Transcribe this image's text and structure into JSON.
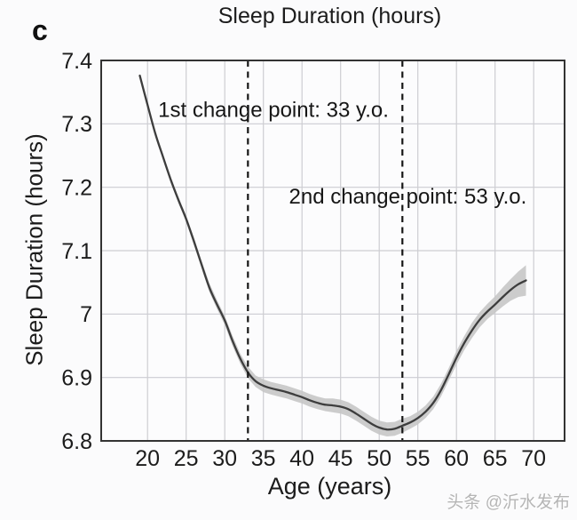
{
  "figure": {
    "panel_label": "c"
  },
  "watermark": {
    "text": "头条 @沂水发布",
    "color": "#b5b5b5"
  },
  "chart_data": {
    "type": "line",
    "title": "Sleep Duration (hours)",
    "xlabel": "Age (years)",
    "ylabel": "Sleep Duration (hours)",
    "xlim": [
      14,
      74
    ],
    "ylim": [
      6.8,
      7.4
    ],
    "x_ticks": [
      20,
      25,
      30,
      35,
      40,
      45,
      50,
      55,
      60,
      65,
      70
    ],
    "y_ticks": [
      6.8,
      6.9,
      7,
      7.1,
      7.2,
      7.3,
      7.4
    ],
    "y_tick_labels": [
      "6.8",
      "6.9",
      "7",
      "7.1",
      "7.2",
      "7.3",
      "7.4"
    ],
    "grid": true,
    "legend": "none",
    "series": [
      {
        "name": "mean sleep duration with confidence band",
        "x": [
          19,
          20,
          21,
          22,
          23,
          24,
          25,
          26,
          27,
          28,
          29,
          30,
          31,
          32,
          33,
          34,
          35,
          36,
          37,
          38,
          39,
          40,
          41,
          42,
          43,
          44,
          45,
          46,
          47,
          48,
          49,
          50,
          51,
          52,
          53,
          54,
          55,
          56,
          57,
          58,
          59,
          60,
          61,
          62,
          63,
          64,
          65,
          66,
          67,
          68,
          69
        ],
        "y": [
          7.376,
          7.33,
          7.285,
          7.248,
          7.212,
          7.18,
          7.15,
          7.115,
          7.078,
          7.042,
          7.015,
          6.99,
          6.958,
          6.93,
          6.908,
          6.894,
          6.887,
          6.883,
          6.88,
          6.877,
          6.873,
          6.869,
          6.864,
          6.86,
          6.857,
          6.856,
          6.854,
          6.85,
          6.843,
          6.835,
          6.827,
          6.821,
          6.818,
          6.819,
          6.824,
          6.829,
          6.836,
          6.846,
          6.86,
          6.88,
          6.905,
          6.931,
          6.954,
          6.974,
          6.991,
          7.004,
          7.015,
          7.027,
          7.038,
          7.047,
          7.053
        ],
        "band_halfwidth": [
          0.003,
          0.003,
          0.004,
          0.004,
          0.005,
          0.005,
          0.005,
          0.006,
          0.006,
          0.007,
          0.007,
          0.007,
          0.008,
          0.008,
          0.009,
          0.009,
          0.01,
          0.01,
          0.01,
          0.01,
          0.01,
          0.01,
          0.01,
          0.01,
          0.01,
          0.011,
          0.011,
          0.011,
          0.011,
          0.011,
          0.011,
          0.011,
          0.011,
          0.011,
          0.011,
          0.01,
          0.01,
          0.01,
          0.01,
          0.01,
          0.01,
          0.011,
          0.011,
          0.012,
          0.012,
          0.012,
          0.013,
          0.015,
          0.017,
          0.02,
          0.024
        ]
      }
    ],
    "change_points": [
      33,
      53
    ],
    "annotations": [
      {
        "text": "1st change point: 33 y.o.",
        "anchor_age": 36.3,
        "anchor_value": 7.3235
      },
      {
        "text": "2nd change point: 53 y.o.",
        "anchor_age": 53.7,
        "anchor_value": 7.187
      }
    ],
    "colors": {
      "line": "#3d3d3d",
      "band": "#c6c6c6",
      "grid": "#cdcdd2",
      "axis": "#333333",
      "dashed_line": "#161616",
      "text": "#1c1c1c",
      "plot_background": "#fcfcfd"
    }
  }
}
